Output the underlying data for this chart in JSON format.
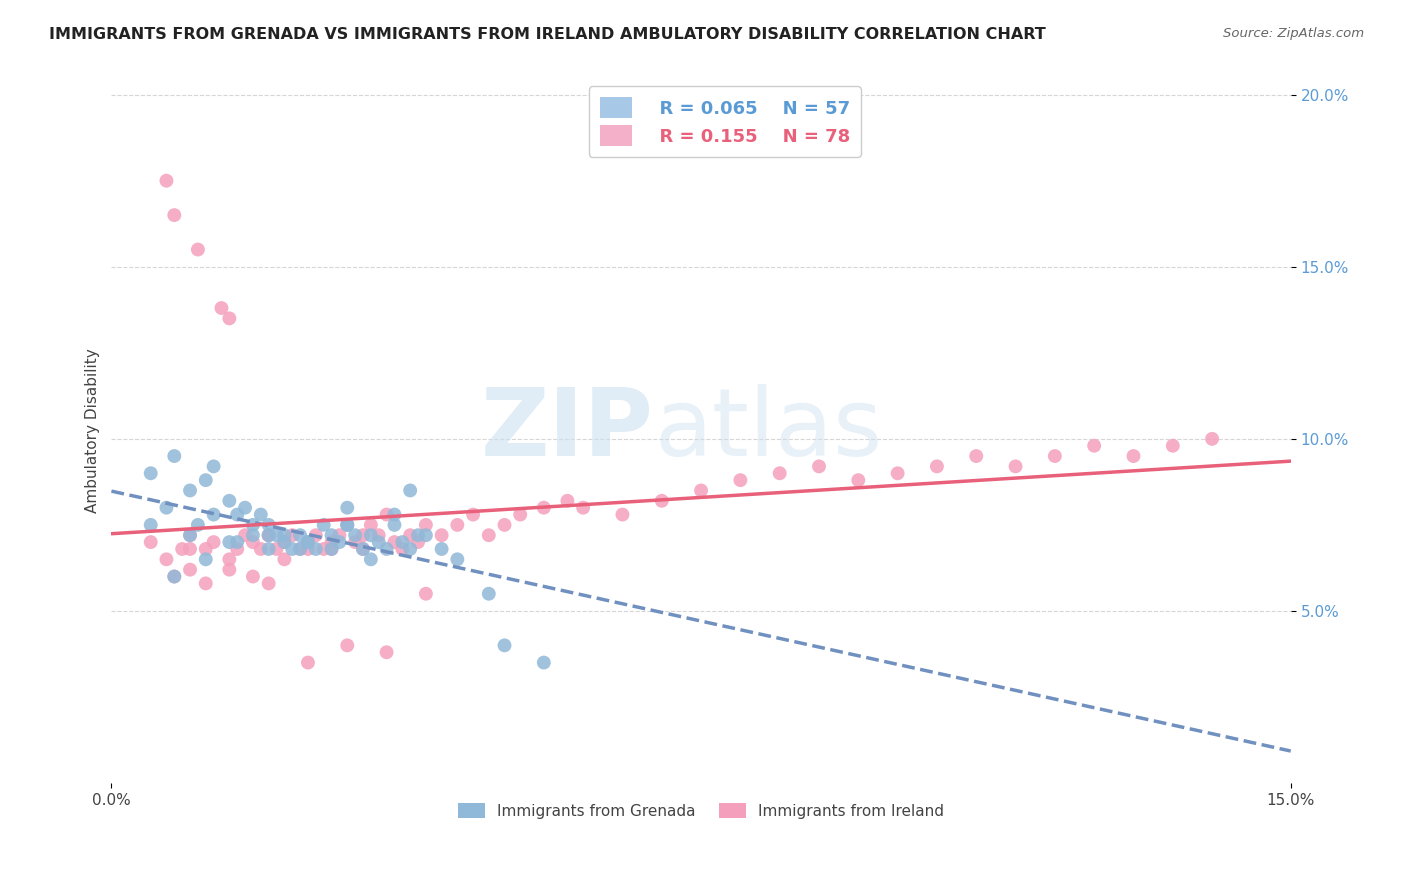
{
  "title": "IMMIGRANTS FROM GRENADA VS IMMIGRANTS FROM IRELAND AMBULATORY DISABILITY CORRELATION CHART",
  "source": "Source: ZipAtlas.com",
  "ylabel": "Ambulatory Disability",
  "xlim": [
    0.0,
    0.15
  ],
  "ylim": [
    0.0,
    0.205
  ],
  "legend_entries": [
    {
      "label": "Immigrants from Grenada",
      "color": "#a8c8e8",
      "R": "0.065",
      "N": "57"
    },
    {
      "label": "Immigrants from Ireland",
      "color": "#f4b0c8",
      "R": "0.155",
      "N": "78"
    }
  ],
  "grenada_color": "#90b8d8",
  "ireland_color": "#f4a0bc",
  "grenada_line_color": "#7090c0",
  "ireland_line_color": "#e8607a",
  "watermark_zip": "ZIP",
  "watermark_atlas": "atlas",
  "background_color": "#ffffff",
  "grenada_scatter_x": [
    0.005,
    0.008,
    0.01,
    0.012,
    0.013,
    0.015,
    0.016,
    0.017,
    0.018,
    0.019,
    0.02,
    0.021,
    0.022,
    0.023,
    0.024,
    0.025,
    0.026,
    0.027,
    0.028,
    0.029,
    0.03,
    0.031,
    0.032,
    0.033,
    0.034,
    0.035,
    0.036,
    0.037,
    0.038,
    0.039,
    0.005,
    0.007,
    0.01,
    0.011,
    0.013,
    0.015,
    0.018,
    0.02,
    0.022,
    0.025,
    0.028,
    0.03,
    0.033,
    0.036,
    0.04,
    0.042,
    0.044,
    0.048,
    0.05,
    0.055,
    0.008,
    0.012,
    0.016,
    0.02,
    0.024,
    0.03,
    0.038
  ],
  "grenada_scatter_y": [
    0.09,
    0.095,
    0.085,
    0.088,
    0.092,
    0.082,
    0.078,
    0.08,
    0.075,
    0.078,
    0.075,
    0.072,
    0.07,
    0.068,
    0.072,
    0.07,
    0.068,
    0.075,
    0.072,
    0.07,
    0.075,
    0.072,
    0.068,
    0.065,
    0.07,
    0.068,
    0.075,
    0.07,
    0.068,
    0.072,
    0.075,
    0.08,
    0.072,
    0.075,
    0.078,
    0.07,
    0.072,
    0.068,
    0.072,
    0.07,
    0.068,
    0.075,
    0.072,
    0.078,
    0.072,
    0.068,
    0.065,
    0.055,
    0.04,
    0.035,
    0.06,
    0.065,
    0.07,
    0.072,
    0.068,
    0.08,
    0.085
  ],
  "ireland_scatter_x": [
    0.005,
    0.007,
    0.008,
    0.009,
    0.01,
    0.011,
    0.012,
    0.013,
    0.014,
    0.015,
    0.016,
    0.017,
    0.018,
    0.019,
    0.02,
    0.021,
    0.022,
    0.023,
    0.024,
    0.025,
    0.026,
    0.027,
    0.028,
    0.029,
    0.03,
    0.031,
    0.032,
    0.033,
    0.034,
    0.035,
    0.036,
    0.037,
    0.038,
    0.039,
    0.04,
    0.042,
    0.044,
    0.046,
    0.048,
    0.05,
    0.052,
    0.055,
    0.058,
    0.06,
    0.065,
    0.07,
    0.075,
    0.08,
    0.085,
    0.09,
    0.095,
    0.1,
    0.105,
    0.11,
    0.115,
    0.12,
    0.125,
    0.13,
    0.135,
    0.14,
    0.008,
    0.01,
    0.012,
    0.015,
    0.018,
    0.02,
    0.025,
    0.03,
    0.035,
    0.04,
    0.01,
    0.015,
    0.02,
    0.025,
    0.007,
    0.022,
    0.028,
    0.032
  ],
  "ireland_scatter_y": [
    0.07,
    0.175,
    0.165,
    0.068,
    0.072,
    0.155,
    0.068,
    0.07,
    0.138,
    0.135,
    0.068,
    0.072,
    0.07,
    0.068,
    0.072,
    0.068,
    0.065,
    0.072,
    0.068,
    0.07,
    0.072,
    0.068,
    0.07,
    0.072,
    0.075,
    0.07,
    0.068,
    0.075,
    0.072,
    0.078,
    0.07,
    0.068,
    0.072,
    0.07,
    0.075,
    0.072,
    0.075,
    0.078,
    0.072,
    0.075,
    0.078,
    0.08,
    0.082,
    0.08,
    0.078,
    0.082,
    0.085,
    0.088,
    0.09,
    0.092,
    0.088,
    0.09,
    0.092,
    0.095,
    0.092,
    0.095,
    0.098,
    0.095,
    0.098,
    0.1,
    0.06,
    0.062,
    0.058,
    0.062,
    0.06,
    0.058,
    0.035,
    0.04,
    0.038,
    0.055,
    0.068,
    0.065,
    0.072,
    0.068,
    0.065,
    0.07,
    0.068,
    0.072
  ]
}
